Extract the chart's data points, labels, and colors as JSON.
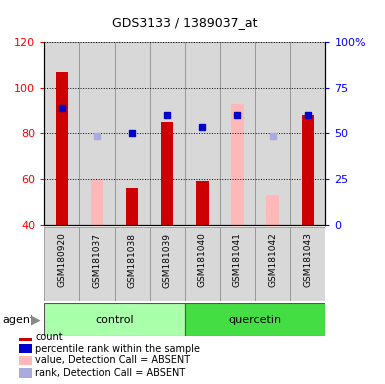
{
  "title": "GDS3133 / 1389037_at",
  "samples": [
    "GSM180920",
    "GSM181037",
    "GSM181038",
    "GSM181039",
    "GSM181040",
    "GSM181041",
    "GSM181042",
    "GSM181043"
  ],
  "group_labels": [
    "control",
    "quercetin"
  ],
  "group_colors": [
    "#aaffaa",
    "#44dd44"
  ],
  "red_bars": [
    107,
    null,
    56,
    85,
    59,
    null,
    null,
    88
  ],
  "pink_bars": [
    null,
    60,
    null,
    null,
    null,
    93,
    53,
    null
  ],
  "blue_squares_pct": [
    63.75,
    null,
    50.0,
    60.0,
    53.75,
    60.0,
    null,
    60.0
  ],
  "light_blue_squares_pct": [
    null,
    48.75,
    null,
    null,
    null,
    null,
    48.75,
    null
  ],
  "ylim_left": [
    40,
    120
  ],
  "ylim_right": [
    0,
    100
  ],
  "yticks_left": [
    40,
    60,
    80,
    100,
    120
  ],
  "yticks_right": [
    0,
    25,
    50,
    75,
    100
  ],
  "ytick_labels_right": [
    "0",
    "25",
    "50",
    "75",
    "100%"
  ],
  "background_color": "#d8d8d8",
  "colors": {
    "red": "#cc0000",
    "pink": "#ffb8b8",
    "blue": "#0000cc",
    "light_blue": "#aaaadd"
  },
  "legend_items": [
    {
      "color": "#cc0000",
      "label": "count"
    },
    {
      "color": "#0000cc",
      "label": "percentile rank within the sample"
    },
    {
      "color": "#ffb8b8",
      "label": "value, Detection Call = ABSENT"
    },
    {
      "color": "#aaaadd",
      "label": "rank, Detection Call = ABSENT"
    }
  ]
}
